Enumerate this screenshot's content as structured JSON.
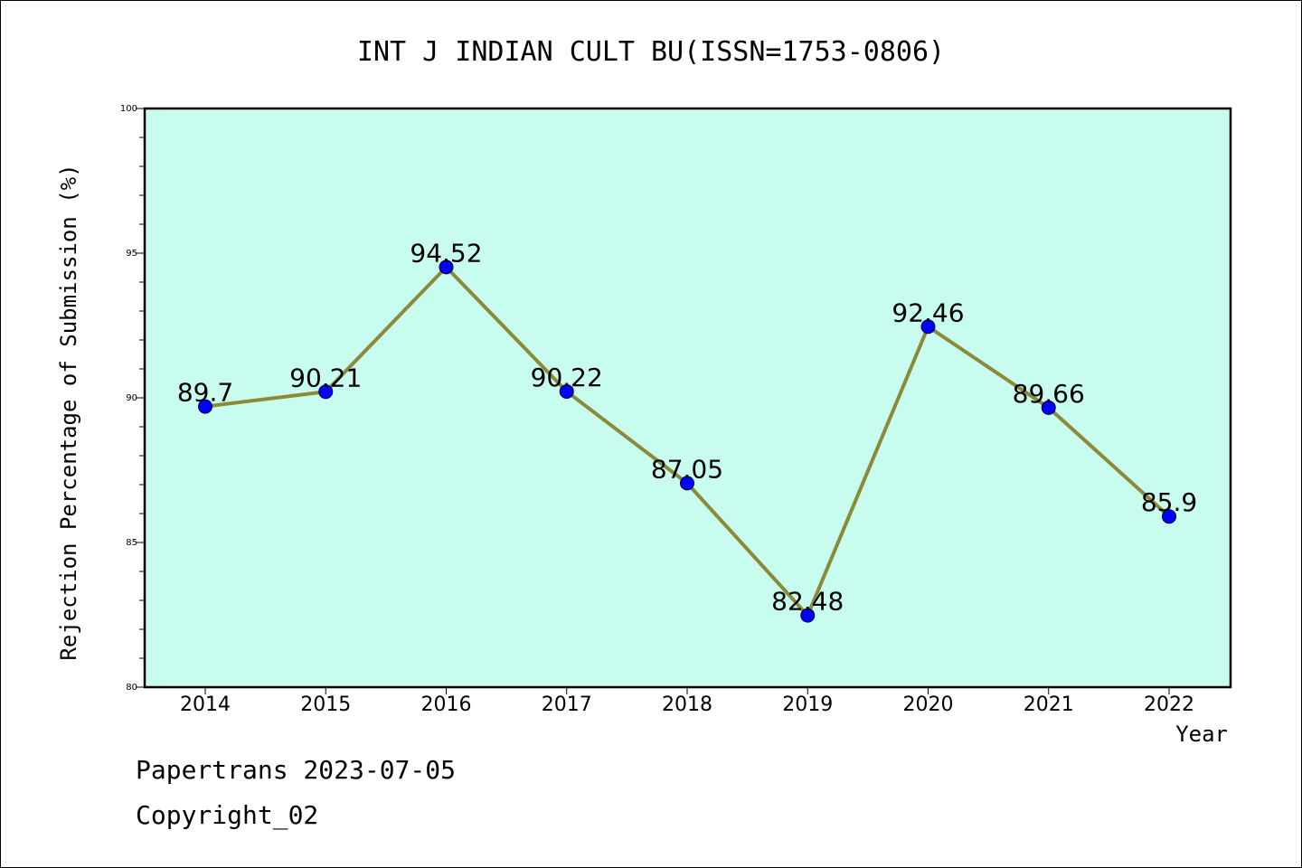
{
  "chart_data": {
    "type": "line",
    "title": "INT J INDIAN CULT BU(ISSN=1753-0806)",
    "xlabel": "Year",
    "ylabel": "Rejection Percentage of Submission (%)",
    "categories": [
      "2014",
      "2015",
      "2016",
      "2017",
      "2018",
      "2019",
      "2020",
      "2021",
      "2022"
    ],
    "values": [
      89.7,
      90.21,
      94.52,
      90.22,
      87.05,
      82.48,
      92.46,
      89.66,
      85.9
    ],
    "data_labels": [
      "89.7",
      "90.21",
      "94.52",
      "90.22",
      "87.05",
      "82.48",
      "92.46",
      "89.66",
      "85.9"
    ],
    "ylim": [
      80,
      100
    ],
    "y_ticks": [
      80,
      85,
      90,
      95,
      100
    ],
    "grid": false,
    "colors": {
      "plot_background": "#c8fcee",
      "line": "#8b8a3a",
      "marker": "#0000ff"
    }
  },
  "footer": {
    "source": "Papertrans 2023-07-05",
    "copyright": "Copyright_02"
  }
}
